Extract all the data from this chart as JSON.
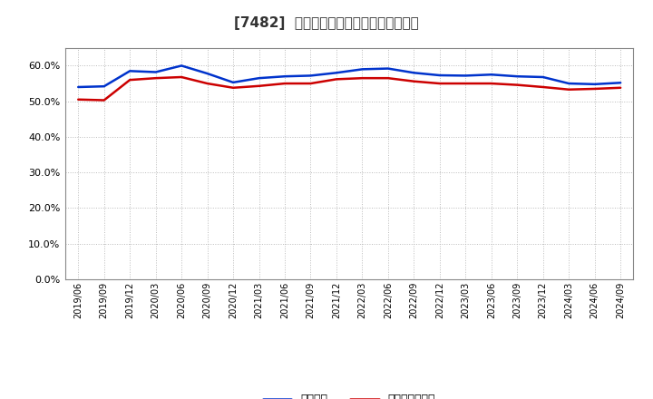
{
  "title": "[7482]  固定比率、固定長期適合率の推移",
  "series1_label": "固定比率",
  "series2_label": "固定長期適合率",
  "series1_color": "#0033cc",
  "series2_color": "#cc0000",
  "background_color": "#ffffff",
  "grid_color": "#bbbbbb",
  "ylim": [
    0.0,
    0.65
  ],
  "yticks": [
    0.0,
    0.1,
    0.2,
    0.3,
    0.4,
    0.5,
    0.6
  ],
  "dates": [
    "2019/06",
    "2019/09",
    "2019/12",
    "2020/03",
    "2020/06",
    "2020/09",
    "2020/12",
    "2021/03",
    "2021/06",
    "2021/09",
    "2021/12",
    "2022/03",
    "2022/06",
    "2022/09",
    "2022/12",
    "2023/03",
    "2023/06",
    "2023/09",
    "2023/12",
    "2024/03",
    "2024/06",
    "2024/09"
  ],
  "series1_values": [
    0.54,
    0.542,
    0.585,
    0.582,
    0.6,
    0.578,
    0.553,
    0.565,
    0.57,
    0.572,
    0.58,
    0.59,
    0.592,
    0.58,
    0.573,
    0.572,
    0.575,
    0.57,
    0.568,
    0.55,
    0.548,
    0.552
  ],
  "series2_values": [
    0.505,
    0.503,
    0.56,
    0.565,
    0.568,
    0.55,
    0.538,
    0.543,
    0.55,
    0.55,
    0.562,
    0.565,
    0.565,
    0.556,
    0.55,
    0.55,
    0.55,
    0.546,
    0.54,
    0.533,
    0.535,
    0.538
  ]
}
